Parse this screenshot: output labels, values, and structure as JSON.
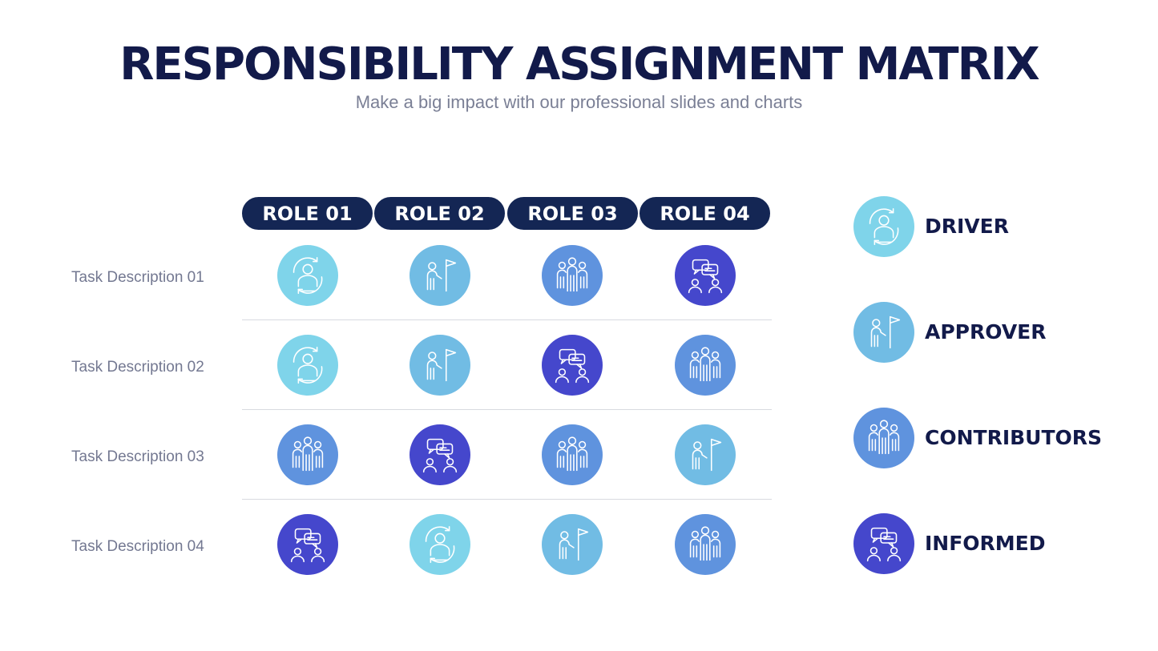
{
  "header": {
    "title": "RESPONSIBILITY ASSIGNMENT MATRIX",
    "subtitle": "Make a big impact with our professional slides and charts"
  },
  "roles": [
    "ROLE 01",
    "ROLE 02",
    "ROLE 03",
    "ROLE 04"
  ],
  "tasks": [
    "Task Description 01",
    "Task Description 02",
    "Task Description 03",
    "Task Description 04"
  ],
  "matrix": [
    [
      "driver",
      "approver",
      "contributors",
      "informed"
    ],
    [
      "driver",
      "approver",
      "informed",
      "contributors"
    ],
    [
      "contributors",
      "informed",
      "contributors",
      "approver"
    ],
    [
      "informed",
      "driver",
      "approver",
      "contributors"
    ]
  ],
  "legend": [
    {
      "key": "driver",
      "label": "DRIVER",
      "color": "#7fd4ea",
      "icon": "driver-icon"
    },
    {
      "key": "approver",
      "label": "APPROVER",
      "color": "#71bce4",
      "icon": "approver-flag-icon"
    },
    {
      "key": "contributors",
      "label": "CONTRIBUTORS",
      "color": "#5f93de",
      "icon": "contributors-group-icon"
    },
    {
      "key": "informed",
      "label": "INFORMED",
      "color": "#4547cc",
      "icon": "informed-chat-icon"
    }
  ]
}
